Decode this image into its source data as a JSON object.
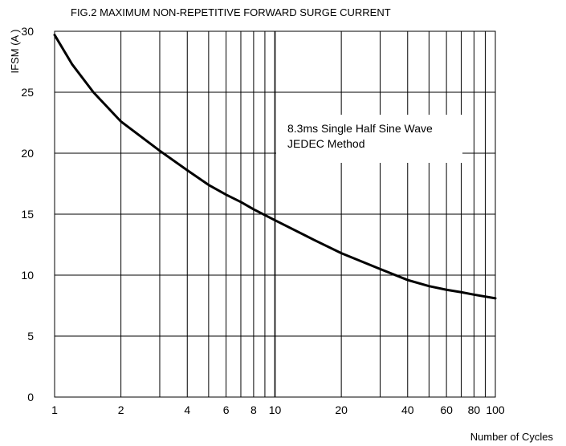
{
  "chart_data": {
    "type": "line",
    "title": "FIG.2  MAXIMUM NON-REPETITIVE FORWARD  SURGE CURRENT",
    "xlabel": "Number of Cycles",
    "ylabel": "IFSM  (A )",
    "x_scale": "log",
    "xlim": [
      1,
      100
    ],
    "ylim": [
      0,
      30
    ],
    "grid": true,
    "x_major_ticks": [
      1,
      10,
      100
    ],
    "x_minor_ticks": [
      2,
      3,
      4,
      5,
      6,
      7,
      8,
      9,
      20,
      30,
      40,
      50,
      60,
      70,
      80,
      90
    ],
    "x_tick_labels": [
      {
        "value": 1,
        "label": "1"
      },
      {
        "value": 2,
        "label": "2"
      },
      {
        "value": 4,
        "label": "4"
      },
      {
        "value": 6,
        "label": "6"
      },
      {
        "value": 8,
        "label": "8"
      },
      {
        "value": 10,
        "label": "10"
      },
      {
        "value": 20,
        "label": "20"
      },
      {
        "value": 40,
        "label": "40"
      },
      {
        "value": 60,
        "label": "60"
      },
      {
        "value": 80,
        "label": "80"
      },
      {
        "value": 100,
        "label": "100"
      }
    ],
    "y_ticks": [
      {
        "value": 0,
        "label": "0"
      },
      {
        "value": 5,
        "label": "5"
      },
      {
        "value": 10,
        "label": "10"
      },
      {
        "value": 15,
        "label": "15"
      },
      {
        "value": 20,
        "label": "20"
      },
      {
        "value": 25,
        "label": "25"
      },
      {
        "value": 30,
        "label": "30"
      }
    ],
    "series": [
      {
        "name": "",
        "color": "#000000",
        "x": [
          1,
          1.2,
          1.5,
          2,
          3,
          4,
          5,
          6,
          7,
          8,
          10,
          15,
          20,
          30,
          40,
          50,
          60,
          70,
          80,
          100
        ],
        "y": [
          29.7,
          27.3,
          25.0,
          22.6,
          20.2,
          18.6,
          17.4,
          16.6,
          16.0,
          15.4,
          14.5,
          12.9,
          11.8,
          10.5,
          9.6,
          9.1,
          8.8,
          8.6,
          8.4,
          8.1
        ]
      }
    ],
    "annotations": [
      "8.3ms Single Half Sine Wave",
      "JEDEC Method"
    ]
  }
}
